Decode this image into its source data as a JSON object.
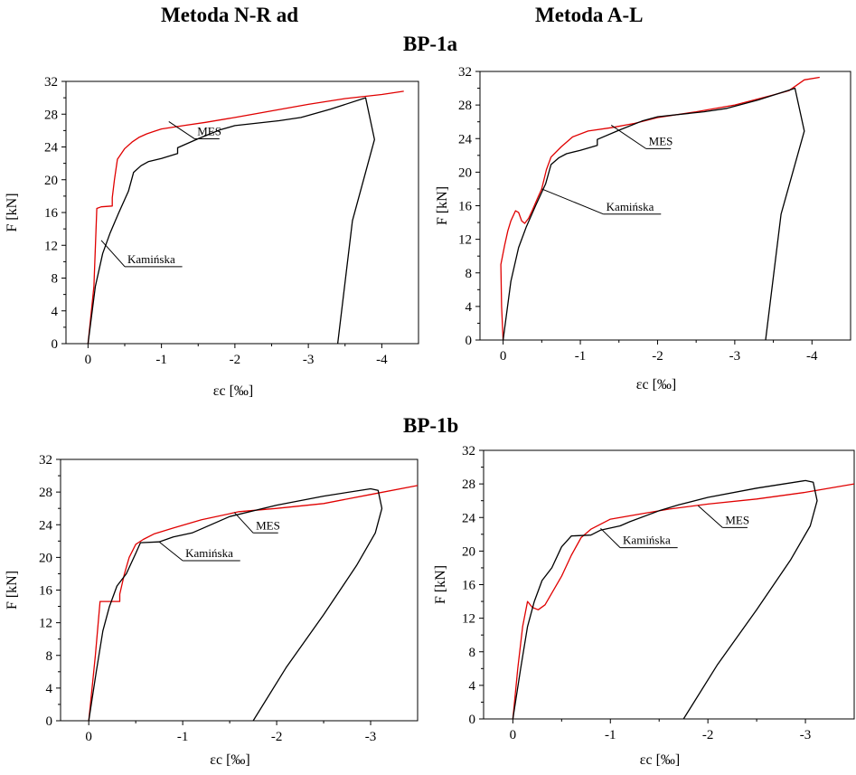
{
  "headers": {
    "method_left": "Metoda N-R ad",
    "method_right": "Metoda A-L",
    "group_a": "BP-1a",
    "group_b": "BP-1b"
  },
  "colors": {
    "kaminska": "#e00000",
    "mes": "#000000"
  },
  "chart_data": [
    {
      "id": "bp1a-nr",
      "type": "line",
      "xlabel": "εc [‰]",
      "ylabel": "F [kN]",
      "xlim": [
        0.3,
        -4.5
      ],
      "ylim": [
        0,
        32
      ],
      "xticks": [
        0,
        -1,
        -2,
        -3,
        -4
      ],
      "xtick_labels": [
        "0",
        "-1",
        "-2",
        "-3",
        "-4"
      ],
      "yticks": [
        0,
        4,
        8,
        12,
        16,
        20,
        24,
        28,
        32
      ],
      "ytick_labels": [
        "0",
        "4",
        "8",
        "12",
        "16",
        "20",
        "24",
        "28",
        "32"
      ],
      "annotations": [
        {
          "text": "Kamińska",
          "point": [
            -0.18,
            12.6
          ],
          "label_at": [
            -0.5,
            9.4
          ]
        },
        {
          "text": "MES",
          "point": [
            -1.1,
            27.1
          ],
          "label_at": [
            -1.45,
            25.0
          ]
        }
      ],
      "series": [
        {
          "name": "Kamińska",
          "color": "#e00000",
          "points": [
            [
              0,
              0
            ],
            [
              -0.08,
              7
            ],
            [
              -0.12,
              16.5
            ],
            [
              -0.18,
              16.7
            ],
            [
              -0.33,
              16.8
            ],
            [
              -0.33,
              17.8
            ],
            [
              -0.36,
              20
            ],
            [
              -0.4,
              22.5
            ],
            [
              -0.5,
              23.8
            ],
            [
              -0.6,
              24.6
            ],
            [
              -0.7,
              25.2
            ],
            [
              -0.8,
              25.6
            ],
            [
              -0.9,
              25.9
            ],
            [
              -1.0,
              26.2
            ],
            [
              -1.3,
              26.6
            ],
            [
              -1.6,
              27.0
            ],
            [
              -2.0,
              27.6
            ],
            [
              -2.5,
              28.4
            ],
            [
              -3.0,
              29.2
            ],
            [
              -3.5,
              29.9
            ],
            [
              -4.0,
              30.4
            ],
            [
              -4.3,
              30.8
            ]
          ]
        },
        {
          "name": "MES",
          "color": "#000000",
          "points": [
            [
              0,
              0
            ],
            [
              -0.1,
              7
            ],
            [
              -0.2,
              11
            ],
            [
              -0.3,
              13.5
            ],
            [
              -0.42,
              16
            ],
            [
              -0.55,
              18.6
            ],
            [
              -0.62,
              20.9
            ],
            [
              -0.72,
              21.7
            ],
            [
              -0.82,
              22.2
            ],
            [
              -1.0,
              22.6
            ],
            [
              -1.22,
              23.2
            ],
            [
              -1.22,
              23.9
            ],
            [
              -1.5,
              25.0
            ],
            [
              -1.8,
              26.1
            ],
            [
              -2.0,
              26.6
            ],
            [
              -2.6,
              27.2
            ],
            [
              -2.9,
              27.6
            ],
            [
              -3.3,
              28.6
            ],
            [
              -3.78,
              30.0
            ],
            [
              -3.9,
              24.9
            ],
            [
              -3.6,
              15
            ],
            [
              -3.4,
              0
            ]
          ]
        }
      ]
    },
    {
      "id": "bp1a-al",
      "type": "line",
      "xlabel": "εc [‰]",
      "ylabel": "F [kN]",
      "xlim": [
        0.3,
        -4.5
      ],
      "ylim": [
        0,
        32
      ],
      "xticks": [
        0,
        -1,
        -2,
        -3,
        -4
      ],
      "xtick_labels": [
        "0",
        "-1",
        "-2",
        "-3",
        "-4"
      ],
      "yticks": [
        0,
        4,
        8,
        12,
        16,
        20,
        24,
        28,
        32
      ],
      "ytick_labels": [
        "0",
        "4",
        "8",
        "12",
        "16",
        "20",
        "24",
        "28",
        "32"
      ],
      "annotations": [
        {
          "text": "Kamińska",
          "point": [
            -0.5,
            18.0
          ],
          "label_at": [
            -1.3,
            15.0
          ]
        },
        {
          "text": "MES",
          "point": [
            -1.4,
            25.6
          ],
          "label_at": [
            -1.85,
            22.8
          ]
        }
      ],
      "series": [
        {
          "name": "Kamińska",
          "color": "#e00000",
          "points": [
            [
              0,
              0
            ],
            [
              0.02,
              4
            ],
            [
              0.03,
              9
            ],
            [
              -0.02,
              11.3
            ],
            [
              -0.06,
              13
            ],
            [
              -0.1,
              14.2
            ],
            [
              -0.16,
              15.4
            ],
            [
              -0.2,
              15.2
            ],
            [
              -0.24,
              14.2
            ],
            [
              -0.28,
              13.9
            ],
            [
              -0.33,
              14.5
            ],
            [
              -0.38,
              15.5
            ],
            [
              -0.45,
              17
            ],
            [
              -0.5,
              18
            ],
            [
              -0.56,
              20.3
            ],
            [
              -0.62,
              21.8
            ],
            [
              -0.75,
              23.0
            ],
            [
              -0.9,
              24.2
            ],
            [
              -1.1,
              24.9
            ],
            [
              -1.4,
              25.3
            ],
            [
              -1.7,
              25.8
            ],
            [
              -2.0,
              26.5
            ],
            [
              -2.5,
              27.2
            ],
            [
              -3.0,
              28.0
            ],
            [
              -3.5,
              29.2
            ],
            [
              -3.7,
              29.7
            ],
            [
              -3.9,
              31.0
            ],
            [
              -4.1,
              31.3
            ]
          ]
        },
        {
          "name": "MES",
          "color": "#000000",
          "points": [
            [
              0,
              0
            ],
            [
              -0.1,
              7
            ],
            [
              -0.2,
              11
            ],
            [
              -0.3,
              13.5
            ],
            [
              -0.42,
              16
            ],
            [
              -0.55,
              18.6
            ],
            [
              -0.62,
              20.9
            ],
            [
              -0.72,
              21.7
            ],
            [
              -0.82,
              22.2
            ],
            [
              -1.0,
              22.6
            ],
            [
              -1.22,
              23.2
            ],
            [
              -1.22,
              23.9
            ],
            [
              -1.5,
              25.0
            ],
            [
              -1.8,
              26.1
            ],
            [
              -2.0,
              26.6
            ],
            [
              -2.6,
              27.2
            ],
            [
              -2.9,
              27.6
            ],
            [
              -3.3,
              28.6
            ],
            [
              -3.78,
              30.0
            ],
            [
              -3.9,
              24.9
            ],
            [
              -3.6,
              15
            ],
            [
              -3.4,
              0
            ]
          ]
        }
      ]
    },
    {
      "id": "bp1b-nr",
      "type": "line",
      "xlabel": "εc [‰]",
      "ylabel": "F [kN]",
      "xlim": [
        0.3,
        -3.5
      ],
      "ylim": [
        0,
        32
      ],
      "xticks": [
        0,
        -1,
        -2,
        -3
      ],
      "xtick_labels": [
        "0",
        "-1",
        "-2",
        "-3"
      ],
      "yticks": [
        0,
        4,
        8,
        12,
        16,
        20,
        24,
        28,
        32
      ],
      "ytick_labels": [
        "0",
        "4",
        "8",
        "12",
        "16",
        "20",
        "24",
        "28",
        "32"
      ],
      "annotations": [
        {
          "text": "Kamińska",
          "point": [
            -0.75,
            21.9
          ],
          "label_at": [
            -1.0,
            19.6
          ]
        },
        {
          "text": "MES",
          "point": [
            -1.55,
            25.5
          ],
          "label_at": [
            -1.75,
            23.0
          ]
        }
      ],
      "series": [
        {
          "name": "Kamińska",
          "color": "#e00000",
          "points": [
            [
              0,
              0
            ],
            [
              -0.07,
              8
            ],
            [
              -0.12,
              14.6
            ],
            [
              -0.33,
              14.6
            ],
            [
              -0.33,
              15.5
            ],
            [
              -0.38,
              18
            ],
            [
              -0.43,
              20
            ],
            [
              -0.5,
              21.6
            ],
            [
              -0.58,
              22.2
            ],
            [
              -0.7,
              22.9
            ],
            [
              -0.9,
              23.6
            ],
            [
              -1.2,
              24.6
            ],
            [
              -1.6,
              25.6
            ],
            [
              -2.0,
              26.0
            ],
            [
              -2.5,
              26.6
            ],
            [
              -3.0,
              27.7
            ],
            [
              -3.5,
              28.8
            ]
          ]
        },
        {
          "name": "MES",
          "color": "#000000",
          "points": [
            [
              0,
              0
            ],
            [
              -0.08,
              6
            ],
            [
              -0.15,
              11
            ],
            [
              -0.22,
              14
            ],
            [
              -0.3,
              16.5
            ],
            [
              -0.4,
              18
            ],
            [
              -0.5,
              20.5
            ],
            [
              -0.55,
              21.8
            ],
            [
              -0.75,
              21.9
            ],
            [
              -0.9,
              22.5
            ],
            [
              -1.1,
              23.0
            ],
            [
              -1.2,
              23.5
            ],
            [
              -1.5,
              25.0
            ],
            [
              -2.0,
              26.4
            ],
            [
              -2.5,
              27.5
            ],
            [
              -3.0,
              28.4
            ],
            [
              -3.08,
              28.2
            ],
            [
              -3.12,
              26
            ],
            [
              -3.05,
              23
            ],
            [
              -2.85,
              19
            ],
            [
              -2.5,
              13
            ],
            [
              -2.1,
              6.5
            ],
            [
              -1.75,
              0
            ]
          ]
        }
      ]
    },
    {
      "id": "bp1b-al",
      "type": "line",
      "xlabel": "εc [‰]",
      "ylabel": "F [kN]",
      "xlim": [
        0.3,
        -3.5
      ],
      "ylim": [
        0,
        32
      ],
      "xticks": [
        0,
        -1,
        -2,
        -3
      ],
      "xtick_labels": [
        "0",
        "-1",
        "-2",
        "-3"
      ],
      "yticks": [
        0,
        4,
        8,
        12,
        16,
        20,
        24,
        28,
        32
      ],
      "ytick_labels": [
        "0",
        "4",
        "8",
        "12",
        "16",
        "20",
        "24",
        "28",
        "32"
      ],
      "annotations": [
        {
          "text": "Kamińska",
          "point": [
            -0.9,
            22.7
          ],
          "label_at": [
            -1.1,
            20.4
          ]
        },
        {
          "text": "MES",
          "point": [
            -1.9,
            25.4
          ],
          "label_at": [
            -2.15,
            22.8
          ]
        }
      ],
      "series": [
        {
          "name": "Kamińska",
          "color": "#e00000",
          "points": [
            [
              0,
              0
            ],
            [
              -0.05,
              6
            ],
            [
              -0.1,
              11
            ],
            [
              -0.15,
              14
            ],
            [
              -0.2,
              13.3
            ],
            [
              -0.26,
              13.0
            ],
            [
              -0.33,
              13.6
            ],
            [
              -0.4,
              15
            ],
            [
              -0.5,
              17
            ],
            [
              -0.6,
              19.5
            ],
            [
              -0.7,
              21.6
            ],
            [
              -0.8,
              22.6
            ],
            [
              -1.0,
              23.8
            ],
            [
              -1.3,
              24.4
            ],
            [
              -1.6,
              25.0
            ],
            [
              -2.0,
              25.6
            ],
            [
              -2.5,
              26.2
            ],
            [
              -3.0,
              27.0
            ],
            [
              -3.5,
              28.0
            ]
          ]
        },
        {
          "name": "MES",
          "color": "#000000",
          "points": [
            [
              0,
              0
            ],
            [
              -0.08,
              6
            ],
            [
              -0.15,
              11
            ],
            [
              -0.22,
              14
            ],
            [
              -0.3,
              16.5
            ],
            [
              -0.4,
              18
            ],
            [
              -0.5,
              20.5
            ],
            [
              -0.6,
              21.8
            ],
            [
              -0.8,
              21.9
            ],
            [
              -0.9,
              22.5
            ],
            [
              -1.1,
              23.0
            ],
            [
              -1.2,
              23.5
            ],
            [
              -1.5,
              24.8
            ],
            [
              -1.7,
              25.5
            ],
            [
              -2.0,
              26.4
            ],
            [
              -2.5,
              27.5
            ],
            [
              -3.0,
              28.4
            ],
            [
              -3.08,
              28.2
            ],
            [
              -3.12,
              26
            ],
            [
              -3.05,
              23
            ],
            [
              -2.85,
              19
            ],
            [
              -2.5,
              13
            ],
            [
              -2.1,
              6.5
            ],
            [
              -1.75,
              0
            ]
          ]
        }
      ]
    }
  ]
}
